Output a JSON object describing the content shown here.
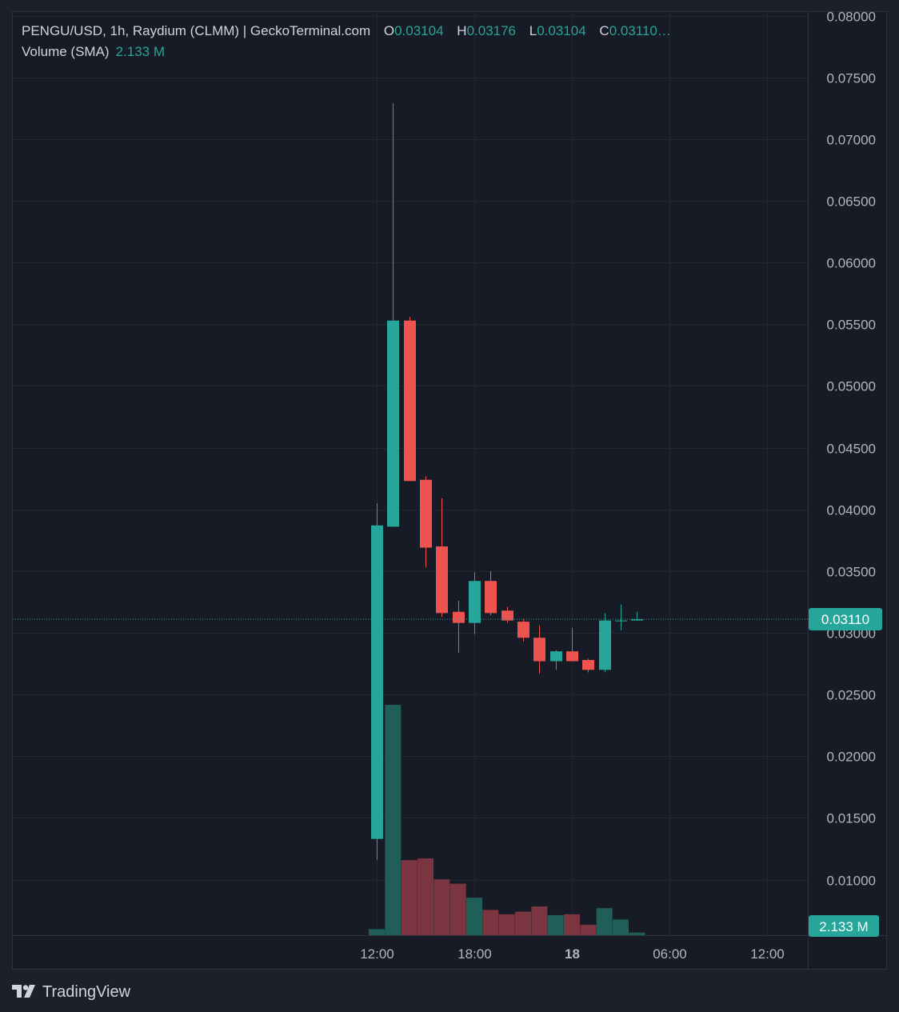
{
  "legend": {
    "title": "PENGU/USD, 1h, Raydium (CLMM) | GeckoTerminal.com",
    "o_key": "O",
    "o_val": "0.03104",
    "h_key": "H",
    "h_val": "0.03176",
    "l_key": "L",
    "l_val": "0.03104",
    "c_key": "C",
    "c_val": "0.03110…",
    "volume_label": "Volume (SMA)",
    "volume_value": "2.133 M"
  },
  "branding": {
    "name": "TradingView"
  },
  "colors": {
    "up": "#26a69a",
    "down": "#ef5350",
    "vol_up": "#1f5f57",
    "vol_down": "#7b3540",
    "grid": "#232733",
    "price_tag": "#26a69a",
    "volume_tag": "#26a69a"
  },
  "chart_data": {
    "type": "candlestick",
    "interval": "1h",
    "symbol": "PENGU/USD",
    "y_ticks": [
      "0.08000",
      "0.07500",
      "0.07000",
      "0.06500",
      "0.06000",
      "0.05500",
      "0.05000",
      "0.04500",
      "0.04000",
      "0.03500",
      "0.03000",
      "0.02500",
      "0.02000",
      "0.01500",
      "0.01000"
    ],
    "ylim": [
      0.0055,
      0.0803
    ],
    "x_ticks": [
      {
        "label": "12:00",
        "hour": 12,
        "bold": false
      },
      {
        "label": "18:00",
        "hour": 18,
        "bold": false
      },
      {
        "label": "18",
        "hour": 24,
        "bold": true
      },
      {
        "label": "06:00",
        "hour": 30,
        "bold": false
      },
      {
        "label": "12:00",
        "hour": 36,
        "bold": false
      }
    ],
    "last_price": "0.03110",
    "last_price_value": 0.0311,
    "volume_tag": "2.133 M",
    "candles": [
      {
        "hour": 12,
        "o": 0.0133,
        "h": 0.0405,
        "l": 0.0116,
        "c": 0.0387,
        "v": 0.7
      },
      {
        "hour": 13,
        "o": 0.0386,
        "h": 0.0729,
        "l": 0.0386,
        "c": 0.0553,
        "v": 26.4
      },
      {
        "hour": 14,
        "o": 0.0553,
        "h": 0.0556,
        "l": 0.0423,
        "c": 0.0423,
        "v": 8.6
      },
      {
        "hour": 15,
        "o": 0.0424,
        "h": 0.0427,
        "l": 0.0353,
        "c": 0.0369,
        "v": 8.8
      },
      {
        "hour": 16,
        "o": 0.037,
        "h": 0.0409,
        "l": 0.0313,
        "c": 0.0316,
        "v": 6.4
      },
      {
        "hour": 17,
        "o": 0.0317,
        "h": 0.0326,
        "l": 0.0284,
        "c": 0.0308,
        "v": 5.9
      },
      {
        "hour": 18,
        "o": 0.0308,
        "h": 0.0349,
        "l": 0.0299,
        "c": 0.0342,
        "v": 4.3
      },
      {
        "hour": 19,
        "o": 0.0342,
        "h": 0.035,
        "l": 0.0314,
        "c": 0.0316,
        "v": 2.9
      },
      {
        "hour": 20,
        "o": 0.0318,
        "h": 0.0321,
        "l": 0.0308,
        "c": 0.031,
        "v": 2.4
      },
      {
        "hour": 21,
        "o": 0.0309,
        "h": 0.0311,
        "l": 0.0293,
        "c": 0.0296,
        "v": 2.7
      },
      {
        "hour": 22,
        "o": 0.0296,
        "h": 0.0306,
        "l": 0.0267,
        "c": 0.0277,
        "v": 3.3
      },
      {
        "hour": 23,
        "o": 0.0277,
        "h": 0.0286,
        "l": 0.027,
        "c": 0.0285,
        "v": 2.3
      },
      {
        "hour": 24,
        "o": 0.0285,
        "h": 0.0304,
        "l": 0.0277,
        "c": 0.0277,
        "v": 2.4
      },
      {
        "hour": 25,
        "o": 0.0278,
        "h": 0.0279,
        "l": 0.0268,
        "c": 0.027,
        "v": 1.2
      },
      {
        "hour": 26,
        "o": 0.027,
        "h": 0.0316,
        "l": 0.0268,
        "c": 0.031,
        "v": 3.1
      },
      {
        "hour": 27,
        "o": 0.031,
        "h": 0.0323,
        "l": 0.0302,
        "c": 0.031,
        "v": 1.8
      },
      {
        "hour": 28,
        "o": 0.031,
        "h": 0.0317,
        "l": 0.031,
        "c": 0.0311,
        "v": 0.3
      }
    ]
  }
}
